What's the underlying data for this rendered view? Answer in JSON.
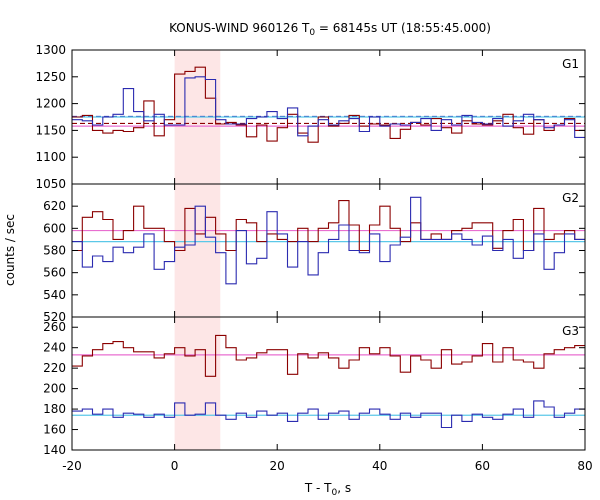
{
  "chart_data": {
    "type": "line",
    "title_main": "KONUS-WIND 960126 T",
    "title_sub": "0",
    "title_rest": " = 68145s UT (18:55:45.000)",
    "xlabel_main": "T - T",
    "xlabel_sub": "0",
    "xlabel_rest": ", s",
    "ylabel": "counts / sec",
    "xlim": [
      -20,
      80
    ],
    "x_ticks": [
      -20,
      0,
      20,
      40,
      60,
      80
    ],
    "x_tick_labels": [
      "-20",
      "0",
      "20",
      "40",
      "60",
      "80"
    ],
    "highlight_interval": [
      0,
      8.9
    ],
    "colors": {
      "red_series": "#8b0000",
      "blue_series": "#2b2bb0",
      "pink_level": "#e86fd0",
      "cyan_level": "#5bc8e8",
      "highlight": "#fde6e6"
    },
    "step_x": [
      -20,
      -18,
      -16,
      -14,
      -12,
      -10,
      -8,
      -6,
      -4,
      -2,
      0,
      2,
      4,
      6,
      8,
      10,
      12,
      14,
      16,
      18,
      20,
      22,
      24,
      26,
      28,
      30,
      32,
      34,
      36,
      38,
      40,
      42,
      44,
      46,
      48,
      50,
      52,
      54,
      56,
      58,
      60,
      62,
      64,
      66,
      68,
      70,
      72,
      74,
      76,
      78,
      80
    ],
    "panels": [
      {
        "label": "G1",
        "ylim": [
          1050,
          1300
        ],
        "y_ticks": [
          1050,
          1100,
          1150,
          1200,
          1250,
          1300
        ],
        "y_tick_labels": [
          "1050",
          "1100",
          "1150",
          "1200",
          "1250",
          "1300"
        ],
        "series": [
          {
            "name": "red",
            "color": "#8b0000",
            "values": [
              1175,
              1178,
              1150,
              1145,
              1150,
              1148,
              1155,
              1205,
              1140,
              1170,
              1255,
              1260,
              1268,
              1210,
              1162,
              1165,
              1160,
              1138,
              1160,
              1130,
              1155,
              1180,
              1145,
              1128,
              1175,
              1158,
              1163,
              1178,
              1158,
              1162,
              1160,
              1135,
              1152,
              1165,
              1160,
              1172,
              1155,
              1145,
              1168,
              1162,
              1160,
              1168,
              1180,
              1155,
              1143,
              1170,
              1150,
              1160,
              1172,
              1150
            ]
          },
          {
            "name": "blue",
            "color": "#2b2bb0",
            "values": [
              1170,
              1168,
              1160,
              1175,
              1180,
              1228,
              1185,
              1168,
              1180,
              1160,
              1160,
              1248,
              1250,
              1245,
              1170,
              1162,
              1162,
              1172,
              1175,
              1185,
              1172,
              1192,
              1140,
              1158,
              1170,
              1160,
              1168,
              1172,
              1148,
              1175,
              1158,
              1162,
              1160,
              1165,
              1172,
              1150,
              1170,
              1160,
              1178,
              1165,
              1162,
              1172,
              1158,
              1168,
              1180,
              1170,
              1155,
              1160,
              1170,
              1137
            ]
          }
        ],
        "levels": [
          {
            "name": "pink",
            "value": 1158,
            "dashed": false,
            "color": "#e86fd0"
          },
          {
            "name": "red-dashed",
            "value": 1163,
            "dashed": true,
            "color": "#8b0000"
          },
          {
            "name": "blue-dashed",
            "value": 1176,
            "dashed": true,
            "color": "#2b2bb0"
          },
          {
            "name": "cyan",
            "value": 1175,
            "dashed": false,
            "color": "#5bc8e8"
          }
        ]
      },
      {
        "label": "G2",
        "ylim": [
          520,
          640
        ],
        "y_ticks": [
          520,
          540,
          560,
          580,
          600,
          620
        ],
        "y_tick_labels": [
          "520",
          "540",
          "560",
          "580",
          "600",
          "620"
        ],
        "series": [
          {
            "name": "red",
            "color": "#8b0000",
            "values": [
              580,
              610,
              615,
              608,
              590,
              598,
              620,
              600,
              600,
              588,
              580,
              618,
              595,
              610,
              595,
              580,
              608,
              605,
              588,
              595,
              590,
              588,
              600,
              588,
              600,
              605,
              625,
              603,
              580,
              603,
              620,
              600,
              588,
              605,
              590,
              595,
              590,
              598,
              600,
              605,
              605,
              582,
              598,
              608,
              580,
              618,
              590,
              595,
              598,
              590
            ]
          },
          {
            "name": "blue",
            "color": "#2b2bb0",
            "values": [
              588,
              565,
              575,
              570,
              583,
              578,
              583,
              595,
              563,
              570,
              583,
              585,
              620,
              592,
              578,
              550,
              598,
              568,
              573,
              615,
              595,
              565,
              588,
              558,
              578,
              590,
              603,
              580,
              578,
              595,
              570,
              585,
              592,
              628,
              590,
              590,
              590,
              595,
              590,
              585,
              593,
              580,
              590,
              573,
              580,
              595,
              563,
              578,
              595,
              590
            ]
          }
        ],
        "levels": [
          {
            "name": "pink",
            "value": 598,
            "dashed": false,
            "color": "#e86fd0"
          },
          {
            "name": "cyan",
            "value": 588,
            "dashed": false,
            "color": "#5bc8e8"
          }
        ]
      },
      {
        "label": "G3",
        "ylim": [
          140,
          270
        ],
        "y_ticks": [
          140,
          160,
          180,
          200,
          220,
          240,
          260
        ],
        "y_tick_labels": [
          "140",
          "160",
          "180",
          "200",
          "220",
          "240",
          "260"
        ],
        "series": [
          {
            "name": "red",
            "color": "#8b0000",
            "values": [
              222,
              232,
              238,
              244,
              246,
              240,
              236,
              236,
              230,
              234,
              240,
              232,
              238,
              212,
              252,
              240,
              228,
              230,
              235,
              238,
              238,
              214,
              234,
              230,
              235,
              230,
              220,
              228,
              240,
              234,
              240,
              232,
              216,
              232,
              228,
              220,
              238,
              224,
              226,
              232,
              244,
              226,
              240,
              228,
              226,
              220,
              234,
              238,
              240,
              242
            ]
          },
          {
            "name": "blue",
            "color": "#2b2bb0",
            "values": [
              178,
              180,
              175,
              180,
              172,
              176,
              175,
              172,
              175,
              172,
              186,
              174,
              175,
              186,
              174,
              170,
              176,
              172,
              178,
              174,
              176,
              168,
              176,
              180,
              170,
              176,
              178,
              170,
              176,
              180,
              175,
              170,
              176,
              172,
              176,
              176,
              162,
              174,
              168,
              175,
              172,
              170,
              175,
              180,
              172,
              188,
              182,
              172,
              176,
              180
            ]
          }
        ],
        "levels": [
          {
            "name": "pink",
            "value": 233,
            "dashed": false,
            "color": "#e86fd0"
          },
          {
            "name": "cyan",
            "value": 174,
            "dashed": false,
            "color": "#5bc8e8"
          }
        ]
      }
    ]
  }
}
